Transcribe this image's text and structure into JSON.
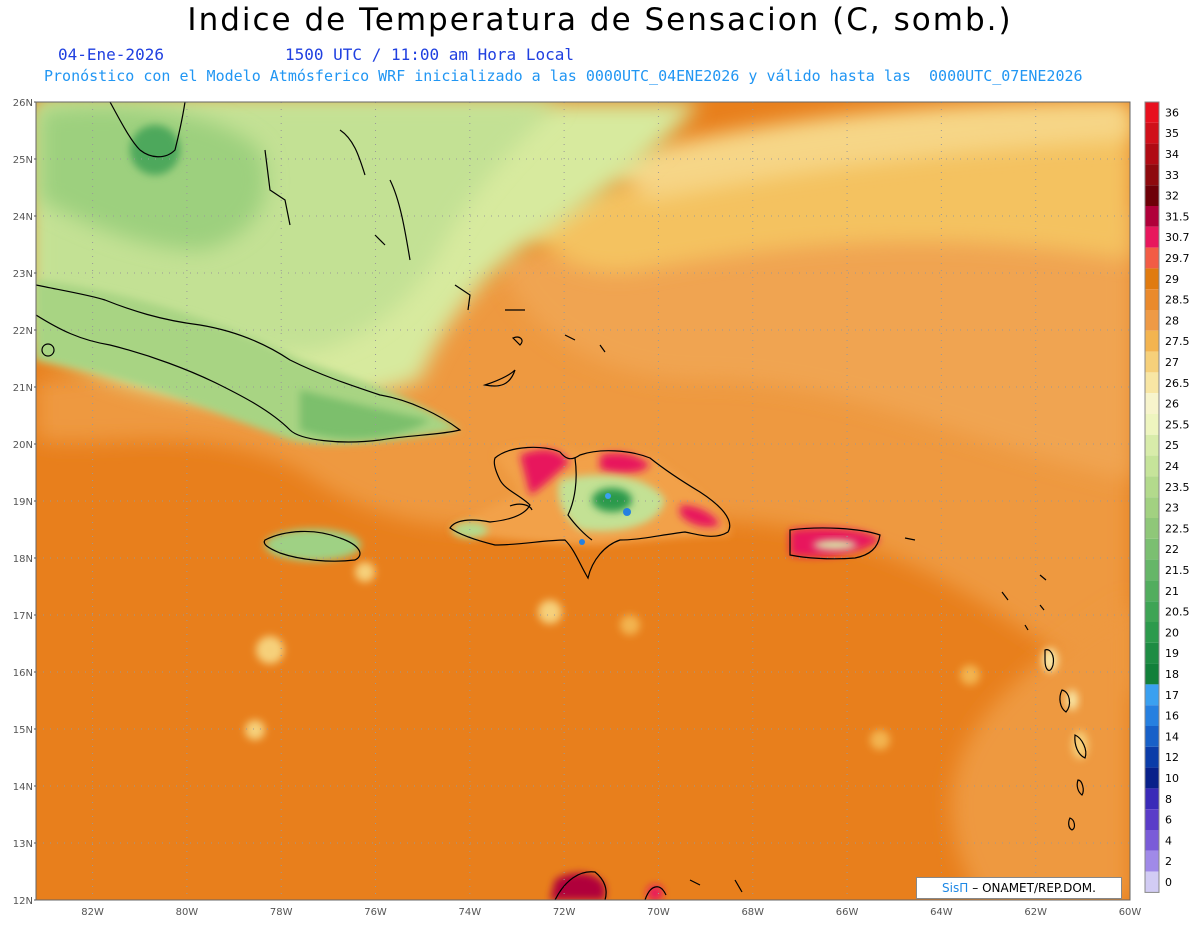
{
  "header": {
    "title": "Indice de Temperatura de Sensacion (C, somb.)",
    "date": "04-Ene-2026",
    "time": "1500 UTC / 11:00 am Hora Local",
    "model_line": "Pronóstico con el Modelo Atmósferico WRF inicializado a las 0000UTC_04ENE2026 y válido hasta las  0000UTC_07ENE2026"
  },
  "axes": {
    "lat_labels": [
      "26N",
      "25N",
      "24N",
      "23N",
      "22N",
      "21N",
      "20N",
      "19N",
      "18N",
      "17N",
      "16N",
      "15N",
      "14N",
      "13N",
      "12N"
    ],
    "lon_labels": [
      "82W",
      "80W",
      "78W",
      "76W",
      "74W",
      "72W",
      "70W",
      "68W",
      "66W",
      "64W",
      "62W",
      "60W"
    ],
    "lat_range": [
      12,
      26
    ],
    "lon_range": [
      -83.2,
      -60
    ]
  },
  "legend": {
    "labels": [
      "36",
      "35",
      "34",
      "33",
      "32",
      "31.5",
      "30.7",
      "29.7",
      "29",
      "28.5",
      "28",
      "27.5",
      "27",
      "26.5",
      "26",
      "25.5",
      "25",
      "24",
      "23.5",
      "23",
      "22.5",
      "22",
      "21.5",
      "21",
      "20.5",
      "20",
      "19",
      "18",
      "17",
      "16",
      "14",
      "12",
      "10",
      "8",
      "6",
      "4",
      "2",
      "0"
    ],
    "colors": [
      "#e8101e",
      "#d0101a",
      "#b00b14",
      "#8e0a0e",
      "#6e0008",
      "#b0003a",
      "#e8175d",
      "#f25c45",
      "#e07b10",
      "#ea8a2c",
      "#ee9a46",
      "#f3b450",
      "#f6d07a",
      "#f8e6a4",
      "#f7f4cc",
      "#eef5bf",
      "#d8ecaa",
      "#c6e49a",
      "#b3da8c",
      "#a2d181",
      "#8fc779",
      "#7bbf71",
      "#66b668",
      "#52ad5e",
      "#3ea455",
      "#2c9a4c",
      "#1e8c43",
      "#12803a",
      "#3aa0f0",
      "#2680e0",
      "#1760c8",
      "#0b3ca8",
      "#08208a",
      "#3a2ab8",
      "#5a3cc8",
      "#7a5cd8",
      "#a08ae8",
      "#d2ccf4"
    ]
  },
  "credit": {
    "brand": "SisΠ",
    "rest": "– ONAMET/REP.DOM."
  }
}
